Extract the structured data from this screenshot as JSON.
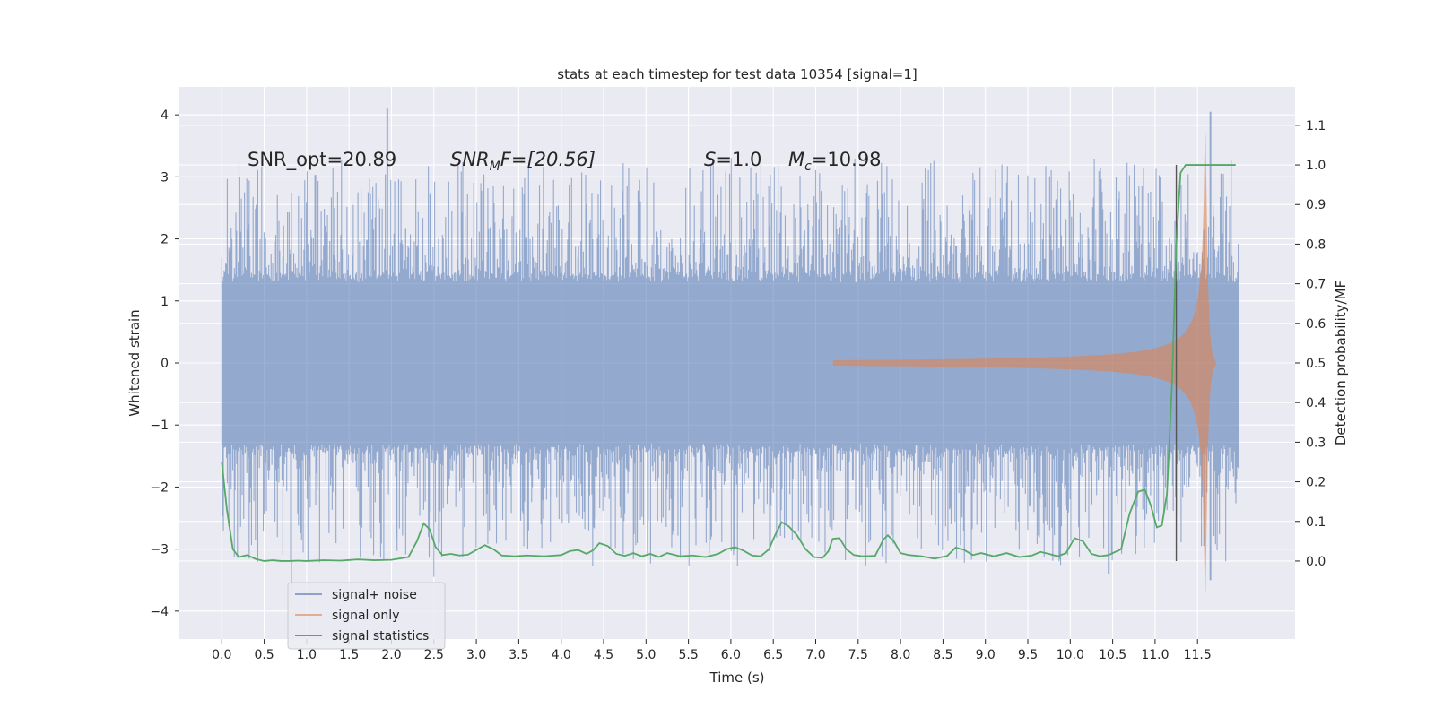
{
  "chart_data": {
    "type": "line",
    "title": "stats at each timestep for test data 10354 [signal=1]",
    "xlabel": "Time (s)",
    "ylabel": "Whitened strain",
    "y2label": "Detection probability/MF",
    "xlim": [
      -0.5,
      12.65
    ],
    "ylim": [
      -4.45,
      4.45
    ],
    "y2lim": [
      -0.197,
      1.197
    ],
    "x_ticks": [
      "0.0",
      "0.5",
      "1.0",
      "1.5",
      "2.0",
      "2.5",
      "3.0",
      "3.5",
      "4.0",
      "4.5",
      "5.0",
      "5.5",
      "6.0",
      "6.5",
      "7.0",
      "7.5",
      "8.0",
      "8.5",
      "9.0",
      "9.5",
      "10.0",
      "10.5",
      "11.0",
      "11.5"
    ],
    "y_ticks": [
      "4",
      "3",
      "2",
      "1",
      "0",
      "−1",
      "−2",
      "−3",
      "−4"
    ],
    "y2_ticks": [
      "1.1",
      "1.0",
      "0.9",
      "0.8",
      "0.7",
      "0.6",
      "0.5",
      "0.4",
      "0.3",
      "0.2",
      "0.1",
      "0.0"
    ],
    "grid": true,
    "legend_position": "lower-left",
    "annotations": {
      "snr_opt": "SNR_opt=20.89",
      "snr_mf_base": "SNR",
      "snr_mf_sub": "M",
      "snr_mf_rest": "F=[20.56]",
      "s_var": "S",
      "s_val": "=1.0",
      "mc_var": "M",
      "mc_sub": "c",
      "mc_val": "=10.98"
    },
    "series": [
      {
        "name": "signal+ noise",
        "color": "#4c72b0",
        "note_envelope": {
          "x_range": [
            0.0,
            11.98
          ],
          "core_band": [
            -1.3,
            1.3
          ],
          "labeled_peaks": [
            {
              "x": 1.95,
              "y": 4.1
            },
            {
              "x": 11.65,
              "y": 4.05
            },
            {
              "x": 0.82,
              "y": -3.7
            },
            {
              "x": 11.65,
              "y": -3.5
            },
            {
              "x": 2.5,
              "y": -3.45
            },
            {
              "x": 10.45,
              "y": -3.4
            }
          ]
        }
      },
      {
        "name": "signal only",
        "color": "#dd8452",
        "chirp": {
          "t_start": 7.2,
          "t_merger": 11.6,
          "t_ringdown_end": 11.72,
          "max_amplitude": 3.7
        }
      },
      {
        "name": "signal statistics",
        "color": "#55a868",
        "x": [
          0.0,
          0.06,
          0.13,
          0.2,
          0.3,
          0.4,
          0.5,
          0.6,
          0.7,
          0.8,
          0.9,
          1.0,
          1.2,
          1.4,
          1.6,
          1.8,
          2.0,
          2.2,
          2.3,
          2.38,
          2.45,
          2.52,
          2.6,
          2.7,
          2.8,
          2.9,
          3.0,
          3.1,
          3.2,
          3.3,
          3.45,
          3.6,
          3.8,
          4.0,
          4.1,
          4.2,
          4.3,
          4.38,
          4.45,
          4.55,
          4.65,
          4.75,
          4.85,
          4.95,
          5.05,
          5.15,
          5.25,
          5.4,
          5.55,
          5.7,
          5.85,
          5.95,
          6.05,
          6.15,
          6.25,
          6.35,
          6.45,
          6.52,
          6.6,
          6.68,
          6.78,
          6.88,
          6.98,
          7.08,
          7.15,
          7.2,
          7.28,
          7.36,
          7.45,
          7.55,
          7.7,
          7.8,
          7.85,
          7.92,
          8.0,
          8.1,
          8.25,
          8.4,
          8.55,
          8.65,
          8.75,
          8.85,
          8.95,
          9.1,
          9.25,
          9.4,
          9.55,
          9.65,
          9.75,
          9.85,
          9.95,
          10.05,
          10.15,
          10.25,
          10.35,
          10.45,
          10.6,
          10.7,
          10.8,
          10.88,
          10.95,
          11.02,
          11.08,
          11.14,
          11.2,
          11.25,
          11.3,
          11.36,
          11.45,
          11.6,
          11.8,
          11.95
        ],
        "y": [
          0.25,
          0.13,
          0.03,
          0.01,
          0.015,
          0.005,
          0.0,
          0.002,
          0.0,
          0.0,
          0.001,
          0.0,
          0.002,
          0.001,
          0.004,
          0.002,
          0.003,
          0.01,
          0.05,
          0.095,
          0.08,
          0.035,
          0.015,
          0.018,
          0.014,
          0.016,
          0.028,
          0.04,
          0.03,
          0.014,
          0.012,
          0.014,
          0.012,
          0.015,
          0.025,
          0.028,
          0.018,
          0.028,
          0.045,
          0.038,
          0.018,
          0.013,
          0.02,
          0.012,
          0.018,
          0.01,
          0.02,
          0.012,
          0.014,
          0.01,
          0.018,
          0.03,
          0.035,
          0.026,
          0.014,
          0.012,
          0.03,
          0.065,
          0.098,
          0.088,
          0.065,
          0.03,
          0.01,
          0.008,
          0.025,
          0.056,
          0.058,
          0.03,
          0.015,
          0.012,
          0.013,
          0.055,
          0.065,
          0.05,
          0.02,
          0.015,
          0.012,
          0.006,
          0.013,
          0.034,
          0.028,
          0.015,
          0.02,
          0.012,
          0.02,
          0.01,
          0.014,
          0.023,
          0.018,
          0.012,
          0.02,
          0.058,
          0.05,
          0.018,
          0.012,
          0.015,
          0.03,
          0.12,
          0.175,
          0.18,
          0.14,
          0.085,
          0.09,
          0.17,
          0.45,
          0.8,
          0.98,
          1.0,
          1.0,
          1.0,
          1.0,
          1.0
        ]
      }
    ]
  }
}
